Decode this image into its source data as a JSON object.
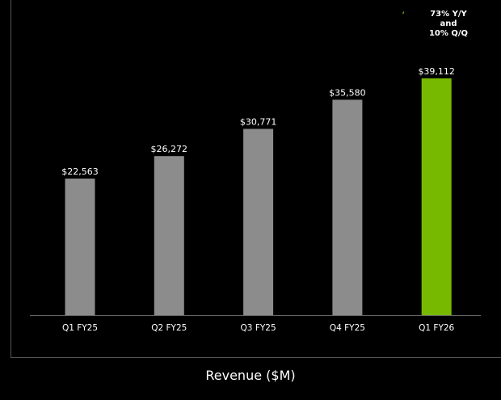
{
  "chart_data": {
    "type": "bar",
    "title": "Revenue ($M)",
    "categories": [
      "Q1 FY25",
      "Q2 FY25",
      "Q3 FY25",
      "Q4 FY25",
      "Q1 FY26"
    ],
    "values": [
      22563,
      26272,
      30771,
      35580,
      39112
    ],
    "data_labels": [
      "$22,563",
      "$26,272",
      "$30,771",
      "$35,580",
      "$39,112"
    ],
    "ylim": [
      0,
      40000
    ],
    "grid": false,
    "highlight_index": 4,
    "colors": {
      "bar": "#8c8c8c",
      "highlight": "#76b900",
      "background": "#000000",
      "axis": "#555555",
      "arrow": "#76b900"
    },
    "annotation": {
      "lines": [
        "73% Y/Y",
        "and",
        "10% Q/Q"
      ],
      "icon": "up-arrow-icon"
    }
  }
}
